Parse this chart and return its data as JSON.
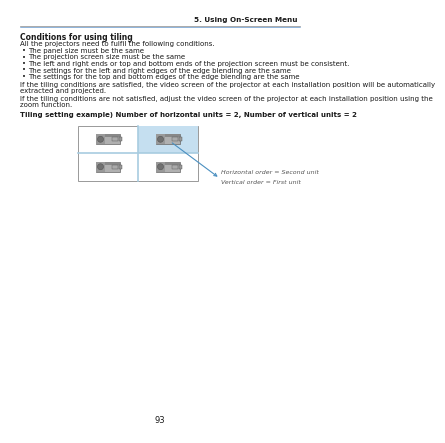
{
  "page_header": "5. Using On-Screen Menu",
  "section_title": "Conditions for using tiling",
  "intro_text": "All the projectors need to fulfil the following conditions.",
  "bullets": [
    "The panel size must be the same",
    "The projection screen size must be the same",
    "The left and right ends or top and bottom ends of the projection screen must be consistent.",
    "The settings for the left and right edges of the edge blending are the same",
    "The settings for the top and bottom edges of the edge blending are the same"
  ],
  "para1_lines": [
    "If the tiling conditions are satisfied, the video screen of the projector at each installation position will be automatically",
    "extracted and projected."
  ],
  "para2_lines": [
    "If the tiling conditions are not satisfied, adjust the video screen of the projector at each installation position using the",
    "zoom function."
  ],
  "diagram_title": "Tiling setting example) Number of horizontal units = 2, Number of vertical units = 2",
  "annotation_line1": "Horizontal order = Second unit",
  "annotation_line2": "Vertical order = First unit",
  "page_number": "93",
  "header_line_color": "#888888",
  "header_blue_color": "#3a7abf",
  "highlight_color": "#c5dff0",
  "box_border_color": "#999999",
  "divider_color": "#a8cce0",
  "bg_color": "#ffffff",
  "text_color": "#1a1a1a",
  "arrow_color": "#4a8fc0"
}
